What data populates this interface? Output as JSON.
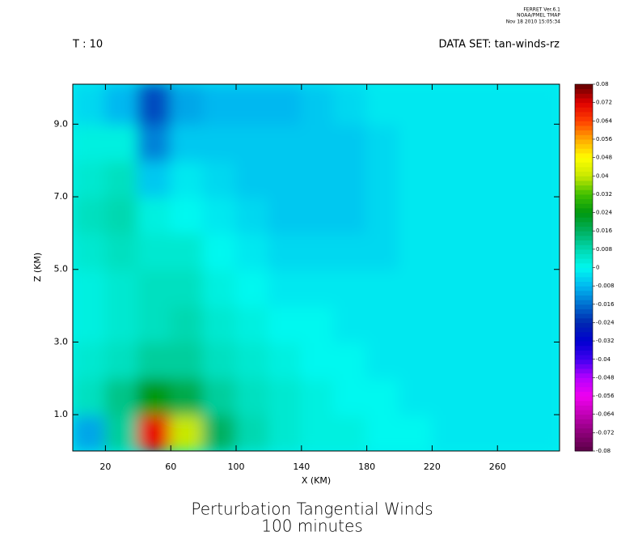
{
  "header": {
    "lines": [
      "FERRET Ver.6.1",
      "NOAA/PMEL TMAP",
      "Nov 18 2010 15:05:34"
    ],
    "left_label": "T : 10",
    "right_label": "DATA SET: tan-winds-rz"
  },
  "chart_data": {
    "type": "contour",
    "title": "Perturbation Tangential Winds",
    "subtitle": "100 minutes",
    "x_label": "X (KM)",
    "y_label": "Z (KM)",
    "xlim": [
      0,
      298
    ],
    "ylim": [
      0,
      10.1
    ],
    "xticks": [
      20,
      60,
      100,
      140,
      180,
      220,
      260
    ],
    "yticks": [
      {
        "value": 1,
        "label": "1.0"
      },
      {
        "value": 3,
        "label": "3.0"
      },
      {
        "value": 5,
        "label": "5.0"
      },
      {
        "value": 7,
        "label": "7.0"
      },
      {
        "value": 9,
        "label": "9.0"
      }
    ],
    "x": [
      10,
      30,
      50,
      70,
      90,
      110,
      130,
      150,
      170,
      190,
      210,
      230,
      250,
      270,
      290
    ],
    "y": [
      0.5,
      1.5,
      2.5,
      3.5,
      4.5,
      5.5,
      6.5,
      7.5,
      8.5,
      9.5
    ],
    "z": [
      [
        -0.01,
        0.01,
        0.07,
        0.04,
        0.016,
        0.008,
        0.004,
        0.002,
        0.002,
        0,
        0,
        -0.002,
        -0.002,
        -0.002,
        -0.002
      ],
      [
        0.006,
        0.012,
        0.024,
        0.018,
        0.01,
        0.006,
        0.004,
        0.002,
        0,
        0,
        -0.002,
        -0.002,
        -0.002,
        -0.002,
        -0.002
      ],
      [
        0.004,
        0.006,
        0.01,
        0.01,
        0.006,
        0.004,
        0.002,
        0,
        0,
        -0.002,
        -0.002,
        -0.002,
        -0.002,
        -0.002,
        -0.002
      ],
      [
        0.002,
        0.004,
        0.006,
        0.008,
        0.004,
        0.002,
        0,
        0,
        -0.002,
        -0.002,
        -0.002,
        -0.002,
        -0.002,
        -0.002,
        -0.002
      ],
      [
        0.002,
        0.004,
        0.006,
        0.006,
        0.002,
        0,
        -0.002,
        -0.002,
        -0.002,
        -0.002,
        -0.002,
        -0.002,
        -0.002,
        -0.002,
        -0.002
      ],
      [
        0.004,
        0.006,
        0.004,
        0.004,
        0,
        -0.002,
        -0.004,
        -0.004,
        -0.004,
        -0.004,
        -0.002,
        -0.002,
        -0.002,
        -0.002,
        -0.002
      ],
      [
        0.006,
        0.008,
        0.002,
        0,
        -0.002,
        -0.004,
        -0.006,
        -0.006,
        -0.006,
        -0.004,
        -0.002,
        -0.002,
        -0.002,
        -0.002,
        -0.002
      ],
      [
        0.004,
        0.006,
        -0.006,
        -0.002,
        -0.004,
        -0.006,
        -0.006,
        -0.006,
        -0.006,
        -0.004,
        -0.002,
        -0.002,
        -0.002,
        -0.002,
        -0.002
      ],
      [
        0.002,
        0.002,
        -0.014,
        -0.006,
        -0.006,
        -0.006,
        -0.006,
        -0.006,
        -0.006,
        -0.004,
        -0.002,
        -0.002,
        -0.002,
        -0.002,
        -0.002
      ],
      [
        -0.004,
        -0.008,
        -0.02,
        -0.01,
        -0.008,
        -0.008,
        -0.008,
        -0.006,
        -0.004,
        -0.002,
        -0.002,
        -0.002,
        -0.002,
        -0.002,
        -0.002
      ]
    ],
    "colorbar": {
      "ticks": [
        -0.08,
        -0.072,
        -0.064,
        -0.056,
        -0.048,
        -0.04,
        -0.032,
        -0.024,
        -0.016,
        -0.008,
        0,
        0.008,
        0.016,
        0.024,
        0.032,
        0.04,
        0.048,
        0.056,
        0.064,
        0.072,
        0.08
      ],
      "colors": [
        "#5a0046",
        "#8c0078",
        "#c000b4",
        "#f000f0",
        "#b400ff",
        "#4000f0",
        "#0000d0",
        "#0028b0",
        "#0070d0",
        "#00b8f0",
        "#00f8f0",
        "#00d8b0",
        "#00b060",
        "#009810",
        "#40c000",
        "#c8e800",
        "#ffff00",
        "#ffa800",
        "#ff4000",
        "#e00000",
        "#600000"
      ]
    }
  }
}
